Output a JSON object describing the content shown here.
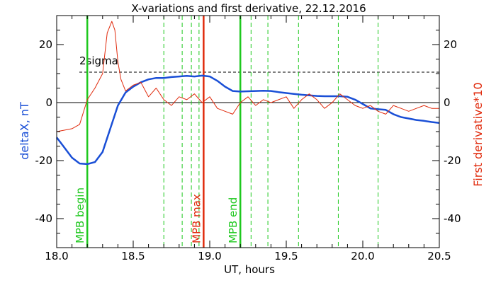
{
  "chart_data": {
    "type": "line",
    "title": "X-variations and first derivative, 22.12.2016",
    "xlabel": "UT, hours",
    "ylabel_left": "deltaX, nT",
    "ylabel_right": "First derivative*10",
    "xlim": [
      18.0,
      20.5
    ],
    "ylim": [
      -50,
      30
    ],
    "x_ticks": [
      "18.0",
      "18.5",
      "19.0",
      "19.5",
      "20.0",
      "20.5"
    ],
    "y_ticks_left": [
      "20",
      "0",
      "-20",
      "-40"
    ],
    "y_ticks_right": [
      "20",
      "0",
      "-20",
      "-40"
    ],
    "sigma_label": "2sigma",
    "sigma_value": 10.5,
    "colors": {
      "deltaX": "#1a4fd6",
      "derivative": "#e02a0c",
      "green": "#1ec81e",
      "red_line": "#e02a0c",
      "ylabel_left": "#1a4fd6",
      "ylabel_right": "#e02a0c"
    },
    "series": [
      {
        "key": "deltaX",
        "x": [
          18.0,
          18.05,
          18.1,
          18.15,
          18.2,
          18.25,
          18.3,
          18.35,
          18.4,
          18.45,
          18.5,
          18.55,
          18.6,
          18.65,
          18.7,
          18.75,
          18.8,
          18.85,
          18.9,
          18.95,
          19.0,
          19.05,
          19.1,
          19.15,
          19.2,
          19.25,
          19.3,
          19.35,
          19.4,
          19.45,
          19.5,
          19.55,
          19.6,
          19.65,
          19.7,
          19.75,
          19.8,
          19.85,
          19.9,
          19.95,
          20.0,
          20.05,
          20.1,
          20.15,
          20.2,
          20.25,
          20.3,
          20.35,
          20.4,
          20.45,
          20.5
        ],
        "values": [
          -12,
          -15.5,
          -19,
          -21,
          -21.2,
          -20.5,
          -17,
          -9,
          -1,
          3.5,
          5.5,
          7,
          8,
          8.5,
          8.5,
          8.8,
          9,
          9.2,
          9,
          9.3,
          9,
          7.5,
          5.5,
          4,
          3.8,
          3.9,
          4,
          4.1,
          4,
          3.6,
          3.3,
          3,
          2.7,
          2.5,
          2.3,
          2.2,
          2.2,
          2.2,
          2,
          1,
          -0.5,
          -2,
          -2.3,
          -2.5,
          -4,
          -5,
          -5.5,
          -6,
          -6.3,
          -6.7,
          -7
        ]
      },
      {
        "key": "derivative",
        "x": [
          18.0,
          18.05,
          18.1,
          18.15,
          18.2,
          18.25,
          18.3,
          18.33,
          18.36,
          18.38,
          18.4,
          18.42,
          18.45,
          18.5,
          18.55,
          18.6,
          18.65,
          18.7,
          18.75,
          18.8,
          18.85,
          18.9,
          18.95,
          19.0,
          19.05,
          19.1,
          19.15,
          19.2,
          19.25,
          19.3,
          19.35,
          19.4,
          19.45,
          19.5,
          19.55,
          19.6,
          19.65,
          19.7,
          19.75,
          19.8,
          19.85,
          19.9,
          19.95,
          20.0,
          20.05,
          20.1,
          20.15,
          20.2,
          20.25,
          20.3,
          20.35,
          20.4,
          20.45,
          20.5
        ],
        "values": [
          -10,
          -9.5,
          -9,
          -7.5,
          1,
          5,
          10,
          24,
          28,
          25,
          14,
          8,
          4,
          6,
          7,
          2,
          5,
          1,
          -1,
          2,
          1,
          3,
          0,
          2,
          -2,
          -3,
          -4,
          0,
          2,
          -1,
          1,
          0,
          1,
          2,
          -2,
          1,
          3,
          1,
          -2,
          0,
          3,
          1,
          -1,
          -2,
          -1,
          -3,
          -4,
          -1,
          -2,
          -3,
          -2,
          -1,
          -2,
          -2
        ]
      }
    ],
    "markers": [
      {
        "x": 18.2,
        "style": "solid",
        "color": "green",
        "label": "MPB begin"
      },
      {
        "x": 18.7,
        "style": "dashed",
        "color": "green",
        "label": ""
      },
      {
        "x": 18.82,
        "style": "dashed",
        "color": "green",
        "label": ""
      },
      {
        "x": 18.88,
        "style": "dashed",
        "color": "green",
        "label": ""
      },
      {
        "x": 18.93,
        "style": "dashed",
        "color": "green",
        "label": ""
      },
      {
        "x": 18.96,
        "style": "solid",
        "color": "red_line",
        "label": "MPB max"
      },
      {
        "x": 19.2,
        "style": "solid",
        "color": "green",
        "label": "MPB end"
      },
      {
        "x": 19.27,
        "style": "dashed",
        "color": "green",
        "label": ""
      },
      {
        "x": 19.38,
        "style": "dashed",
        "color": "green",
        "label": ""
      },
      {
        "x": 19.58,
        "style": "dashed",
        "color": "green",
        "label": ""
      },
      {
        "x": 19.84,
        "style": "dashed",
        "color": "green",
        "label": ""
      },
      {
        "x": 20.1,
        "style": "dashed",
        "color": "green",
        "label": ""
      }
    ],
    "grid": false,
    "legend": "none"
  }
}
